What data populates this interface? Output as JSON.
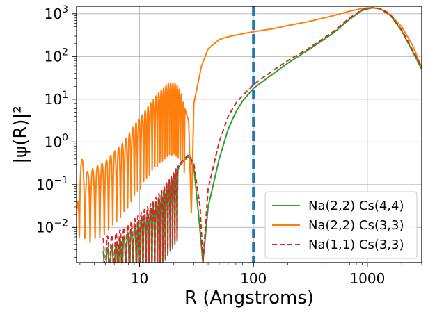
{
  "chart_data": {
    "type": "line",
    "xscale": "log",
    "yscale": "log",
    "xlim": [
      2.8,
      3000
    ],
    "ylim": [
      0.0015,
      1500
    ],
    "xlabel": "R (Angstroms)",
    "ylabel": "|ψ(R)|²",
    "grid": true,
    "legend_position": "lower-right",
    "x_ticks": [
      {
        "value": 10,
        "label": "10"
      },
      {
        "value": 100,
        "label": "100"
      },
      {
        "value": 1000,
        "label": "1000"
      }
    ],
    "y_ticks": [
      {
        "value": 0.01,
        "base": "10",
        "exp": "−2"
      },
      {
        "value": 0.1,
        "base": "10",
        "exp": "−1"
      },
      {
        "value": 1,
        "base": "10",
        "exp": "0"
      },
      {
        "value": 10,
        "base": "10",
        "exp": "1"
      },
      {
        "value": 100,
        "base": "10",
        "exp": "2"
      },
      {
        "value": 1000,
        "base": "10",
        "exp": "3"
      }
    ],
    "vline": {
      "x": 100,
      "color": "#1f77b4",
      "style": "dashed"
    },
    "series": [
      {
        "name": "Na(2,2) Cs(4,4)",
        "color": "#2ca02c",
        "style": "solid",
        "envelope_points": [
          [
            4.8,
            0.003
          ],
          [
            6,
            0.004
          ],
          [
            8,
            0.008
          ],
          [
            10,
            0.015
          ],
          [
            13,
            0.03
          ],
          [
            16,
            0.07
          ],
          [
            20,
            0.18
          ],
          [
            24,
            0.35
          ],
          [
            27,
            0.45
          ],
          [
            30,
            0.25
          ],
          [
            33,
            0.02
          ],
          [
            36,
            0.0015
          ],
          [
            40,
            0.03
          ],
          [
            50,
            0.4
          ],
          [
            60,
            2
          ],
          [
            70,
            5
          ],
          [
            80,
            9
          ],
          [
            100,
            18
          ],
          [
            150,
            40
          ],
          [
            200,
            70
          ],
          [
            300,
            140
          ],
          [
            500,
            350
          ],
          [
            700,
            750
          ],
          [
            900,
            1200
          ],
          [
            1100,
            1380
          ],
          [
            1300,
            1300
          ],
          [
            1600,
            900
          ],
          [
            2000,
            400
          ],
          [
            2500,
            130
          ],
          [
            3000,
            50
          ]
        ]
      },
      {
        "name": "Na(2,2) Cs(3,3)",
        "color": "#ff7f0e",
        "style": "solid",
        "envelope_points": [
          [
            2.8,
            0.02
          ],
          [
            3,
            0.5
          ],
          [
            3.5,
            0.2
          ],
          [
            4,
            0.25
          ],
          [
            5,
            0.35
          ],
          [
            6,
            0.6
          ],
          [
            7,
            0.9
          ],
          [
            8,
            1.5
          ],
          [
            9,
            2.5
          ],
          [
            10,
            3.5
          ],
          [
            12,
            7
          ],
          [
            14,
            12
          ],
          [
            16,
            18
          ],
          [
            18,
            24
          ],
          [
            21,
            23
          ],
          [
            23,
            15
          ],
          [
            25,
            6
          ],
          [
            27,
            3
          ],
          [
            28.5,
            0.02
          ],
          [
            30,
            8
          ],
          [
            35,
            60
          ],
          [
            40,
            150
          ],
          [
            50,
            250
          ],
          [
            60,
            290
          ],
          [
            80,
            340
          ],
          [
            100,
            380
          ],
          [
            150,
            450
          ],
          [
            200,
            530
          ],
          [
            300,
            650
          ],
          [
            500,
            900
          ],
          [
            700,
            1150
          ],
          [
            900,
            1330
          ],
          [
            1000,
            1380
          ],
          [
            1200,
            1360
          ],
          [
            1500,
            1100
          ],
          [
            2000,
            500
          ],
          [
            2500,
            180
          ],
          [
            3000,
            55
          ]
        ]
      },
      {
        "name": "Na(1,1) Cs(3,3)",
        "color": "#d62728",
        "style": "dashed",
        "envelope_points": [
          [
            4.8,
            0.006
          ],
          [
            6,
            0.007
          ],
          [
            8,
            0.012
          ],
          [
            10,
            0.02
          ],
          [
            13,
            0.04
          ],
          [
            16,
            0.08
          ],
          [
            20,
            0.2
          ],
          [
            24,
            0.38
          ],
          [
            27,
            0.5
          ],
          [
            30,
            0.3
          ],
          [
            34,
            0.03
          ],
          [
            36,
            0.0015
          ],
          [
            40,
            0.08
          ],
          [
            50,
            1
          ],
          [
            60,
            4
          ],
          [
            70,
            8
          ],
          [
            80,
            12
          ],
          [
            100,
            22
          ],
          [
            150,
            48
          ],
          [
            200,
            80
          ],
          [
            300,
            150
          ],
          [
            500,
            380
          ],
          [
            700,
            800
          ],
          [
            900,
            1250
          ],
          [
            1100,
            1390
          ],
          [
            1300,
            1320
          ],
          [
            1600,
            950
          ],
          [
            2000,
            420
          ],
          [
            2500,
            140
          ],
          [
            3000,
            55
          ]
        ]
      }
    ]
  }
}
